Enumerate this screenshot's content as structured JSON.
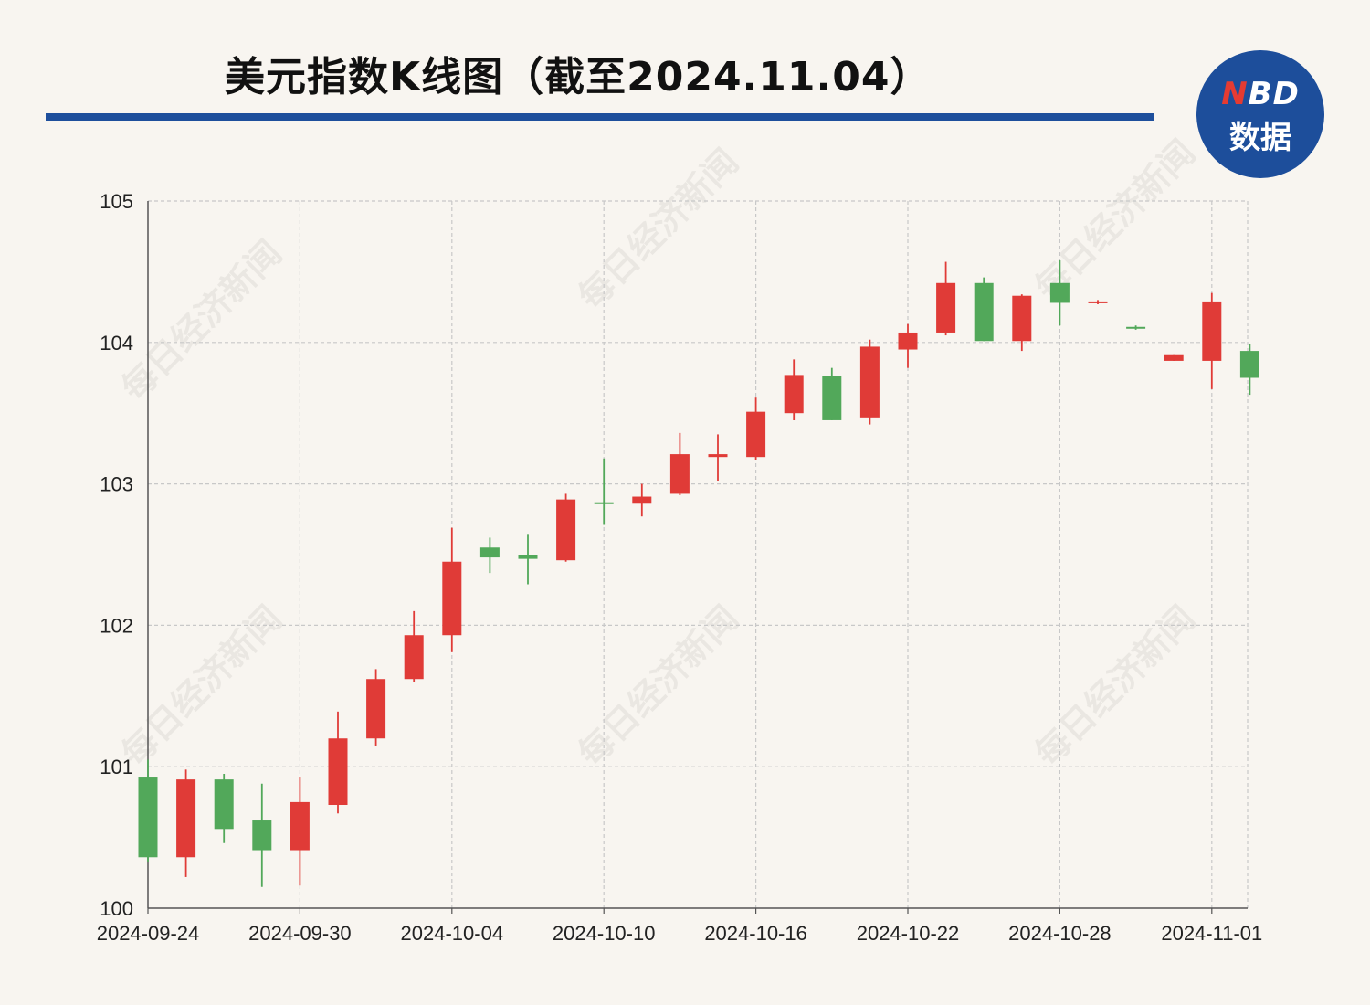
{
  "title": "美元指数K线图（截至2024.11.04）",
  "logo": {
    "top": "BD",
    "top_accent": "N",
    "bottom": "数据"
  },
  "watermark": "每日经济新闻",
  "colors": {
    "up": "#e03b37",
    "down": "#52a85a",
    "rule": "#1e4f9c",
    "logo_bg": "#1d4e9b",
    "grid": "#c8c8c8"
  },
  "chart_data": {
    "type": "candlestick",
    "ylim": [
      100,
      105
    ],
    "yticks": [
      100,
      101,
      102,
      103,
      104,
      105
    ],
    "xtick_labels": [
      "2024-09-24",
      "2024-09-30",
      "2024-10-04",
      "2024-10-10",
      "2024-10-16",
      "2024-10-22",
      "2024-10-28",
      "2024-11-01"
    ],
    "xtick_indices": [
      0,
      4,
      8,
      12,
      16,
      20,
      24,
      28
    ],
    "candles": [
      {
        "open": 100.93,
        "high": 101.05,
        "low": 100.33,
        "close": 100.36
      },
      {
        "open": 100.36,
        "high": 100.98,
        "low": 100.22,
        "close": 100.91
      },
      {
        "open": 100.91,
        "high": 100.95,
        "low": 100.46,
        "close": 100.56
      },
      {
        "open": 100.62,
        "high": 100.88,
        "low": 100.15,
        "close": 100.41
      },
      {
        "open": 100.41,
        "high": 100.93,
        "low": 100.16,
        "close": 100.75
      },
      {
        "open": 100.73,
        "high": 101.39,
        "low": 100.67,
        "close": 101.2
      },
      {
        "open": 101.2,
        "high": 101.69,
        "low": 101.15,
        "close": 101.62
      },
      {
        "open": 101.62,
        "high": 102.1,
        "low": 101.6,
        "close": 101.93
      },
      {
        "open": 101.93,
        "high": 102.69,
        "low": 101.81,
        "close": 102.45
      },
      {
        "open": 102.55,
        "high": 102.62,
        "low": 102.37,
        "close": 102.48
      },
      {
        "open": 102.5,
        "high": 102.64,
        "low": 102.29,
        "close": 102.47
      },
      {
        "open": 102.46,
        "high": 102.93,
        "low": 102.45,
        "close": 102.89
      },
      {
        "open": 102.87,
        "high": 103.18,
        "low": 102.71,
        "close": 102.86
      },
      {
        "open": 102.86,
        "high": 103.0,
        "low": 102.77,
        "close": 102.91
      },
      {
        "open": 102.93,
        "high": 103.36,
        "low": 102.92,
        "close": 103.21
      },
      {
        "open": 103.19,
        "high": 103.35,
        "low": 103.02,
        "close": 103.21
      },
      {
        "open": 103.19,
        "high": 103.61,
        "low": 103.17,
        "close": 103.51
      },
      {
        "open": 103.5,
        "high": 103.88,
        "low": 103.45,
        "close": 103.77
      },
      {
        "open": 103.76,
        "high": 103.82,
        "low": 103.45,
        "close": 103.45
      },
      {
        "open": 103.47,
        "high": 104.02,
        "low": 103.42,
        "close": 103.97
      },
      {
        "open": 103.95,
        "high": 104.13,
        "low": 103.82,
        "close": 104.07
      },
      {
        "open": 104.07,
        "high": 104.57,
        "low": 104.05,
        "close": 104.42
      },
      {
        "open": 104.42,
        "high": 104.46,
        "low": 104.01,
        "close": 104.01
      },
      {
        "open": 104.01,
        "high": 104.34,
        "low": 103.94,
        "close": 104.33
      },
      {
        "open": 104.42,
        "high": 104.58,
        "low": 104.12,
        "close": 104.28
      },
      {
        "open": 104.28,
        "high": 104.3,
        "low": 104.27,
        "close": 104.29
      },
      {
        "open": 104.11,
        "high": 104.12,
        "low": 104.09,
        "close": 104.1
      },
      {
        "open": 103.87,
        "high": 103.91,
        "low": 103.87,
        "close": 103.91
      },
      {
        "open": 103.87,
        "high": 104.35,
        "low": 103.67,
        "close": 104.29
      },
      {
        "open": 103.94,
        "high": 103.99,
        "low": 103.63,
        "close": 103.75
      }
    ]
  }
}
